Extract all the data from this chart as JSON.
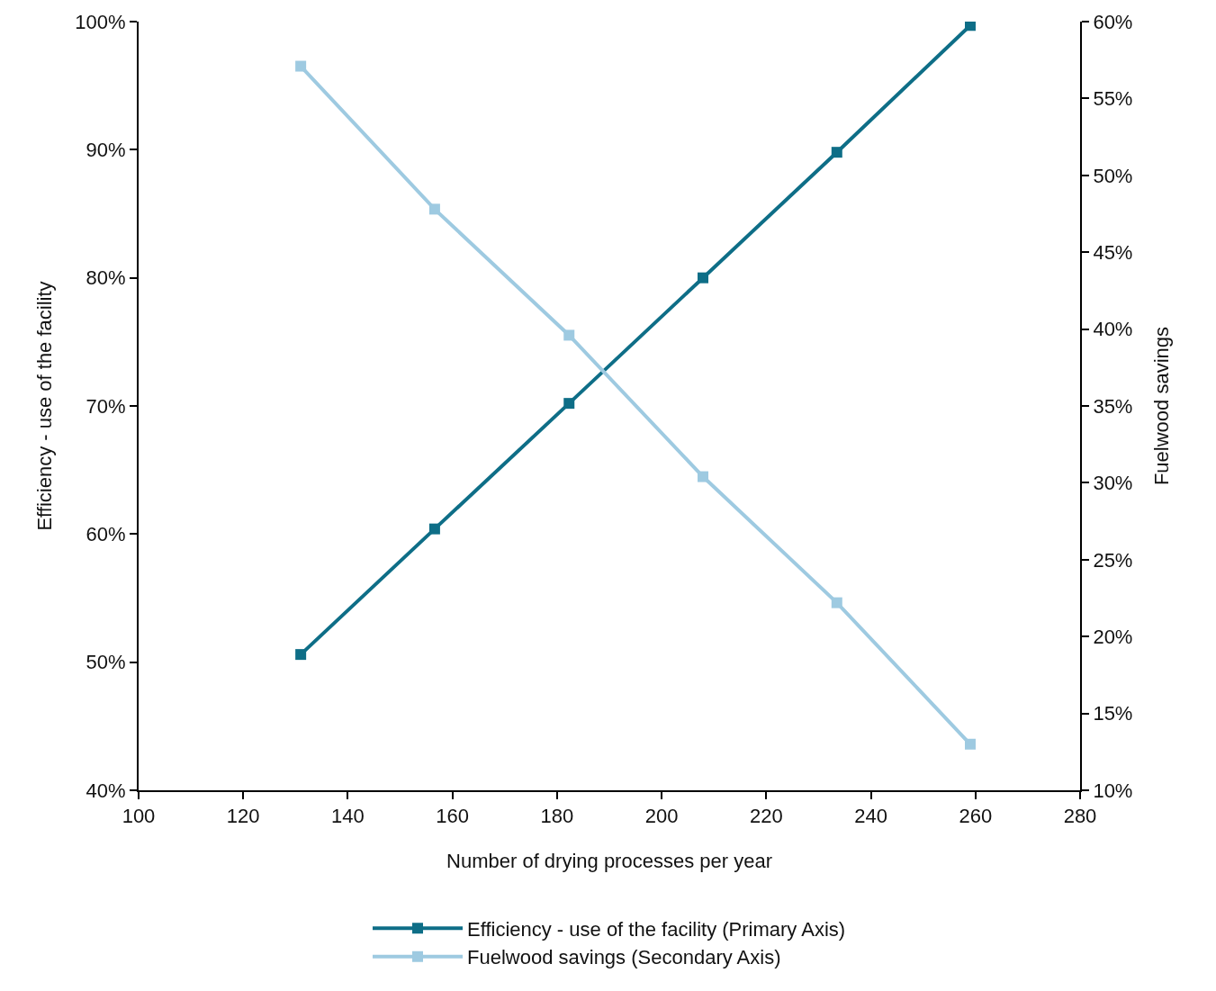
{
  "chart_data": {
    "type": "line",
    "xlabel": "Number of drying processes per year",
    "ylabel": "Efficiency - use of the facility",
    "y2label": "Fuelwood savings",
    "x": [
      131,
      156.6,
      182.3,
      207.9,
      233.5,
      259
    ],
    "series": [
      {
        "name": "Efficiency - use of the facility (Primary Axis)",
        "color": "#0e6e87",
        "values": [
          50.6,
          60.4,
          70.2,
          80.0,
          89.8,
          99.7
        ]
      },
      {
        "name": "Fuelwood savings (Secondary Axis)",
        "color": "#9ecae1",
        "axis": "y2",
        "values": [
          57.1,
          47.8,
          39.6,
          30.4,
          22.2,
          13.0
        ]
      }
    ],
    "xlim": [
      100,
      280
    ],
    "xticks": [
      100,
      120,
      140,
      160,
      180,
      200,
      220,
      240,
      260,
      280
    ],
    "ylim": [
      40,
      100
    ],
    "yticks": [
      {
        "value": 40,
        "label": "40%"
      },
      {
        "value": 50,
        "label": "50%"
      },
      {
        "value": 60,
        "label": "60%"
      },
      {
        "value": 70,
        "label": "70%"
      },
      {
        "value": 80,
        "label": "80%"
      },
      {
        "value": 90,
        "label": "90%"
      },
      {
        "value": 100,
        "label": "100%"
      }
    ],
    "y2lim": [
      10,
      60
    ],
    "y2ticks": [
      {
        "value": 10,
        "label": "10%"
      },
      {
        "value": 15,
        "label": "15%"
      },
      {
        "value": 20,
        "label": "20%"
      },
      {
        "value": 25,
        "label": "25%"
      },
      {
        "value": 30,
        "label": "30%"
      },
      {
        "value": 35,
        "label": "35%"
      },
      {
        "value": 40,
        "label": "40%"
      },
      {
        "value": 45,
        "label": "45%"
      },
      {
        "value": 50,
        "label": "50%"
      },
      {
        "value": 55,
        "label": "55%"
      },
      {
        "value": 60,
        "label": "60%"
      }
    ],
    "grid": false,
    "legend": "bottom",
    "marker": "square",
    "line_style": "solid"
  }
}
